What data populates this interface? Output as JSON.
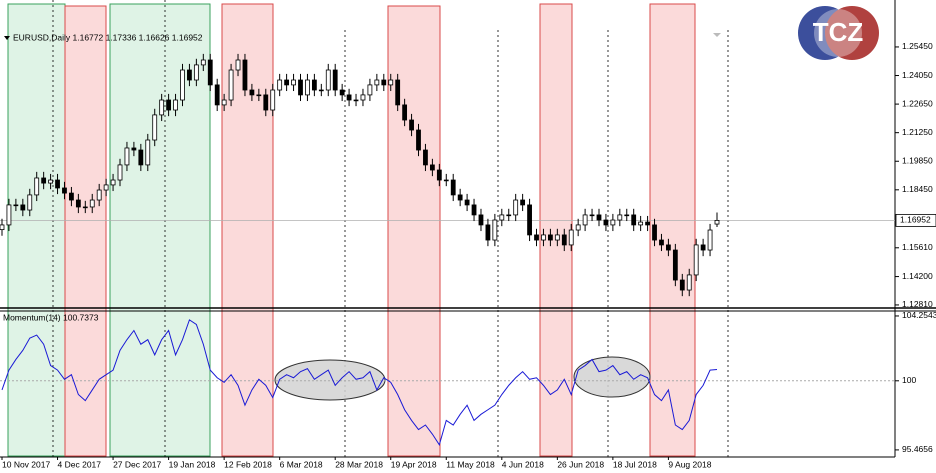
{
  "logo": "TCZ",
  "chart_data": [
    {
      "type": "candlestick",
      "title": "EURUSD,Daily  1.16772 1.17336 1.16626 1.16952",
      "categories": [
        "10 Nov 2017",
        null,
        null,
        null,
        null,
        null,
        null,
        null,
        "4 Dec 2017",
        null,
        null,
        null,
        null,
        null,
        null,
        null,
        "27 Dec 2017",
        null,
        null,
        null,
        null,
        null,
        null,
        null,
        "19 Jan 2018",
        null,
        null,
        null,
        null,
        null,
        null,
        null,
        "12 Feb 2018",
        null,
        null,
        null,
        null,
        null,
        null,
        null,
        "6 Mar 2018",
        null,
        null,
        null,
        null,
        null,
        null,
        null,
        "28 Mar 2018",
        null,
        null,
        null,
        null,
        null,
        null,
        null,
        "19 Apr 2018",
        null,
        null,
        null,
        null,
        null,
        null,
        null,
        "11 May 2018",
        null,
        null,
        null,
        null,
        null,
        null,
        null,
        "4 Jun 2018",
        null,
        null,
        null,
        null,
        null,
        null,
        null,
        "26 Jun 2018",
        null,
        null,
        null,
        null,
        null,
        null,
        null,
        "18 Jul 2018",
        null,
        null,
        null,
        null,
        null,
        null,
        null,
        "9 Aug 2018",
        null,
        null,
        null,
        null,
        null,
        null,
        null
      ],
      "open": [
        1.165,
        1.1673,
        1.1771,
        1.1771,
        1.1746,
        1.182,
        1.1903,
        1.1878,
        1.1893,
        1.1854,
        1.1829,
        1.1795,
        1.1761,
        1.1761,
        1.1795,
        1.1844,
        1.1869,
        1.1893,
        1.1967,
        1.205,
        1.204,
        1.1967,
        1.2089,
        1.2212,
        1.2285,
        1.2236,
        1.2285,
        1.2432,
        1.2383,
        1.2457,
        1.2481,
        1.2359,
        1.2261,
        1.2285,
        1.2432,
        1.2481,
        1.2334,
        1.231,
        1.231,
        1.2236,
        1.2334,
        1.2383,
        1.2359,
        1.2383,
        1.231,
        1.2383,
        1.2334,
        1.2334,
        1.2432,
        1.2334,
        1.231,
        1.2285,
        1.2285,
        1.231,
        1.2359,
        1.2383,
        1.2359,
        1.2383,
        1.2261,
        1.2187,
        1.2138,
        1.204,
        1.1967,
        1.1942,
        1.1893,
        1.1893,
        1.182,
        1.1795,
        1.1771,
        1.1722,
        1.1673,
        1.1599,
        1.1697,
        1.1722,
        1.1722,
        1.1795,
        1.1771,
        1.1624,
        1.1599,
        1.1624,
        1.1599,
        1.1624,
        1.1575,
        1.1648,
        1.1673,
        1.1722,
        1.1722,
        1.1697,
        1.1673,
        1.1697,
        1.1722,
        1.1722,
        1.1673,
        1.1687,
        1.1673,
        1.1599,
        1.1575,
        1.155,
        1.1403,
        1.1354,
        1.1428,
        1.1575,
        1.155,
        1.16772
      ],
      "high": [
        1.1703,
        1.1801,
        1.1801,
        1.1801,
        1.185,
        1.1933,
        1.1933,
        1.1923,
        1.1923,
        1.1884,
        1.1859,
        1.1825,
        1.1791,
        1.1825,
        1.1874,
        1.1899,
        1.1923,
        1.1997,
        1.208,
        1.208,
        1.207,
        1.2119,
        1.2242,
        1.2315,
        1.2315,
        1.2315,
        1.2462,
        1.2462,
        1.2487,
        1.2511,
        1.2511,
        1.2389,
        1.2315,
        1.2462,
        1.2511,
        1.2511,
        1.2364,
        1.234,
        1.234,
        1.2364,
        1.2413,
        1.2413,
        1.2413,
        1.2413,
        1.2413,
        1.2413,
        1.2364,
        1.2462,
        1.2462,
        1.2364,
        1.234,
        1.2315,
        1.234,
        1.2389,
        1.2413,
        1.2413,
        1.2413,
        1.2413,
        1.2291,
        1.2217,
        1.2168,
        1.207,
        1.1997,
        1.1972,
        1.1923,
        1.1923,
        1.185,
        1.1825,
        1.1801,
        1.1752,
        1.1703,
        1.1727,
        1.1752,
        1.1752,
        1.1825,
        1.1825,
        1.1801,
        1.1654,
        1.1654,
        1.1654,
        1.1654,
        1.1654,
        1.1678,
        1.1703,
        1.1752,
        1.1752,
        1.1752,
        1.1727,
        1.1727,
        1.1752,
        1.1752,
        1.1752,
        1.1717,
        1.1717,
        1.1703,
        1.1629,
        1.1605,
        1.158,
        1.1433,
        1.1458,
        1.1605,
        1.1605,
        1.1678,
        1.17336
      ],
      "low": [
        1.162,
        1.1643,
        1.1741,
        1.1716,
        1.1716,
        1.179,
        1.1848,
        1.1848,
        1.1824,
        1.1799,
        1.1765,
        1.1731,
        1.1731,
        1.1731,
        1.1765,
        1.1814,
        1.1839,
        1.1863,
        1.1937,
        1.201,
        1.1937,
        1.1937,
        1.2059,
        1.2182,
        1.2206,
        1.2206,
        1.2255,
        1.2353,
        1.2353,
        1.2427,
        1.2329,
        1.2231,
        1.2231,
        1.2255,
        1.2402,
        1.2304,
        1.228,
        1.228,
        1.2206,
        1.2206,
        1.2304,
        1.2329,
        1.2329,
        1.228,
        1.228,
        1.2304,
        1.2304,
        1.2304,
        1.2304,
        1.228,
        1.2255,
        1.2255,
        1.2255,
        1.228,
        1.2329,
        1.2329,
        1.2329,
        1.2231,
        1.2157,
        1.2108,
        1.201,
        1.1937,
        1.1912,
        1.1863,
        1.1863,
        1.179,
        1.1765,
        1.1741,
        1.1692,
        1.1643,
        1.1569,
        1.1569,
        1.1667,
        1.1692,
        1.1692,
        1.1741,
        1.1594,
        1.1569,
        1.1569,
        1.1569,
        1.1569,
        1.1545,
        1.1545,
        1.1618,
        1.1643,
        1.1692,
        1.1667,
        1.1643,
        1.1643,
        1.1667,
        1.1692,
        1.1643,
        1.1643,
        1.1643,
        1.1569,
        1.1545,
        1.152,
        1.1373,
        1.1324,
        1.1324,
        1.1398,
        1.152,
        1.152,
        1.16626
      ],
      "close": [
        1.1673,
        1.1771,
        1.1771,
        1.1746,
        1.182,
        1.1903,
        1.1878,
        1.1893,
        1.1854,
        1.1829,
        1.1795,
        1.1761,
        1.1761,
        1.1795,
        1.1844,
        1.1869,
        1.1893,
        1.1967,
        1.205,
        1.204,
        1.1967,
        1.2089,
        1.2212,
        1.2285,
        1.2236,
        1.2285,
        1.2432,
        1.2383,
        1.2457,
        1.2481,
        1.2359,
        1.2261,
        1.2285,
        1.2432,
        1.2481,
        1.2334,
        1.231,
        1.231,
        1.2236,
        1.2334,
        1.2383,
        1.2359,
        1.2383,
        1.231,
        1.2383,
        1.2334,
        1.2334,
        1.2432,
        1.2334,
        1.231,
        1.2285,
        1.2285,
        1.231,
        1.2359,
        1.2383,
        1.2359,
        1.2383,
        1.2261,
        1.2187,
        1.2138,
        1.204,
        1.1967,
        1.1942,
        1.1893,
        1.1893,
        1.182,
        1.1795,
        1.1771,
        1.1722,
        1.1673,
        1.1599,
        1.1697,
        1.1722,
        1.1722,
        1.1795,
        1.1771,
        1.1624,
        1.1599,
        1.1624,
        1.1599,
        1.1624,
        1.1575,
        1.1648,
        1.1673,
        1.1722,
        1.1722,
        1.1697,
        1.1673,
        1.1697,
        1.1722,
        1.1722,
        1.1673,
        1.1687,
        1.1673,
        1.1599,
        1.1575,
        1.155,
        1.1403,
        1.1354,
        1.1428,
        1.1575,
        1.155,
        1.1648,
        1.16952
      ],
      "current_price": 1.16952,
      "ylim": [
        1.1266,
        1.2775
      ],
      "yticks": [
        {
          "value": 1.2545,
          "label": "1.25450"
        },
        {
          "value": 1.2405,
          "label": "1.24050"
        },
        {
          "value": 1.2265,
          "label": "1.22650"
        },
        {
          "value": 1.2125,
          "label": "1.21250"
        },
        {
          "value": 1.1985,
          "label": "1.19850"
        },
        {
          "value": 1.1845,
          "label": "1.18450"
        },
        {
          "value": 1.1561,
          "label": "1.15610"
        },
        {
          "value": 1.142,
          "label": "1.14200"
        },
        {
          "value": 1.1281,
          "label": "1.12810"
        }
      ]
    },
    {
      "type": "line",
      "title": "Momentum(14) 100.7373",
      "color": "#1a1ad6",
      "values": [
        99.4,
        100.7,
        101.4,
        102.0,
        102.8,
        103.0,
        102.4,
        101.0,
        100.7,
        100.1,
        100.4,
        99.1,
        98.7,
        99.4,
        100.1,
        100.4,
        100.7,
        102.0,
        102.7,
        103.3,
        102.4,
        102.7,
        101.7,
        102.7,
        103.3,
        101.7,
        102.7,
        104.0,
        103.7,
        102.4,
        100.7,
        100.2,
        99.9,
        100.4,
        99.7,
        98.4,
        99.4,
        100.1,
        99.7,
        98.9,
        100.1,
        100.4,
        100.2,
        100.6,
        100.8,
        100.1,
        100.4,
        100.7,
        99.7,
        100.2,
        100.6,
        100.1,
        100.2,
        100.6,
        99.4,
        100.2,
        99.9,
        99.1,
        98.1,
        97.4,
        96.8,
        97.1,
        96.5,
        95.8,
        97.4,
        97.1,
        97.8,
        98.4,
        97.4,
        97.8,
        98.1,
        98.4,
        99.1,
        99.7,
        100.2,
        100.6,
        100.1,
        100.2,
        99.7,
        99.1,
        99.4,
        100.1,
        99.1,
        100.7,
        101.0,
        101.4,
        100.6,
        100.7,
        101.0,
        100.4,
        100.6,
        100.1,
        100.4,
        100.2,
        99.1,
        98.7,
        99.4,
        97.1,
        96.8,
        97.4,
        99.1,
        99.7,
        100.7,
        100.7373
      ],
      "ylim": [
        95.0,
        104.58
      ],
      "yticks": [
        104.2543,
        100,
        95.4656
      ]
    }
  ]
}
